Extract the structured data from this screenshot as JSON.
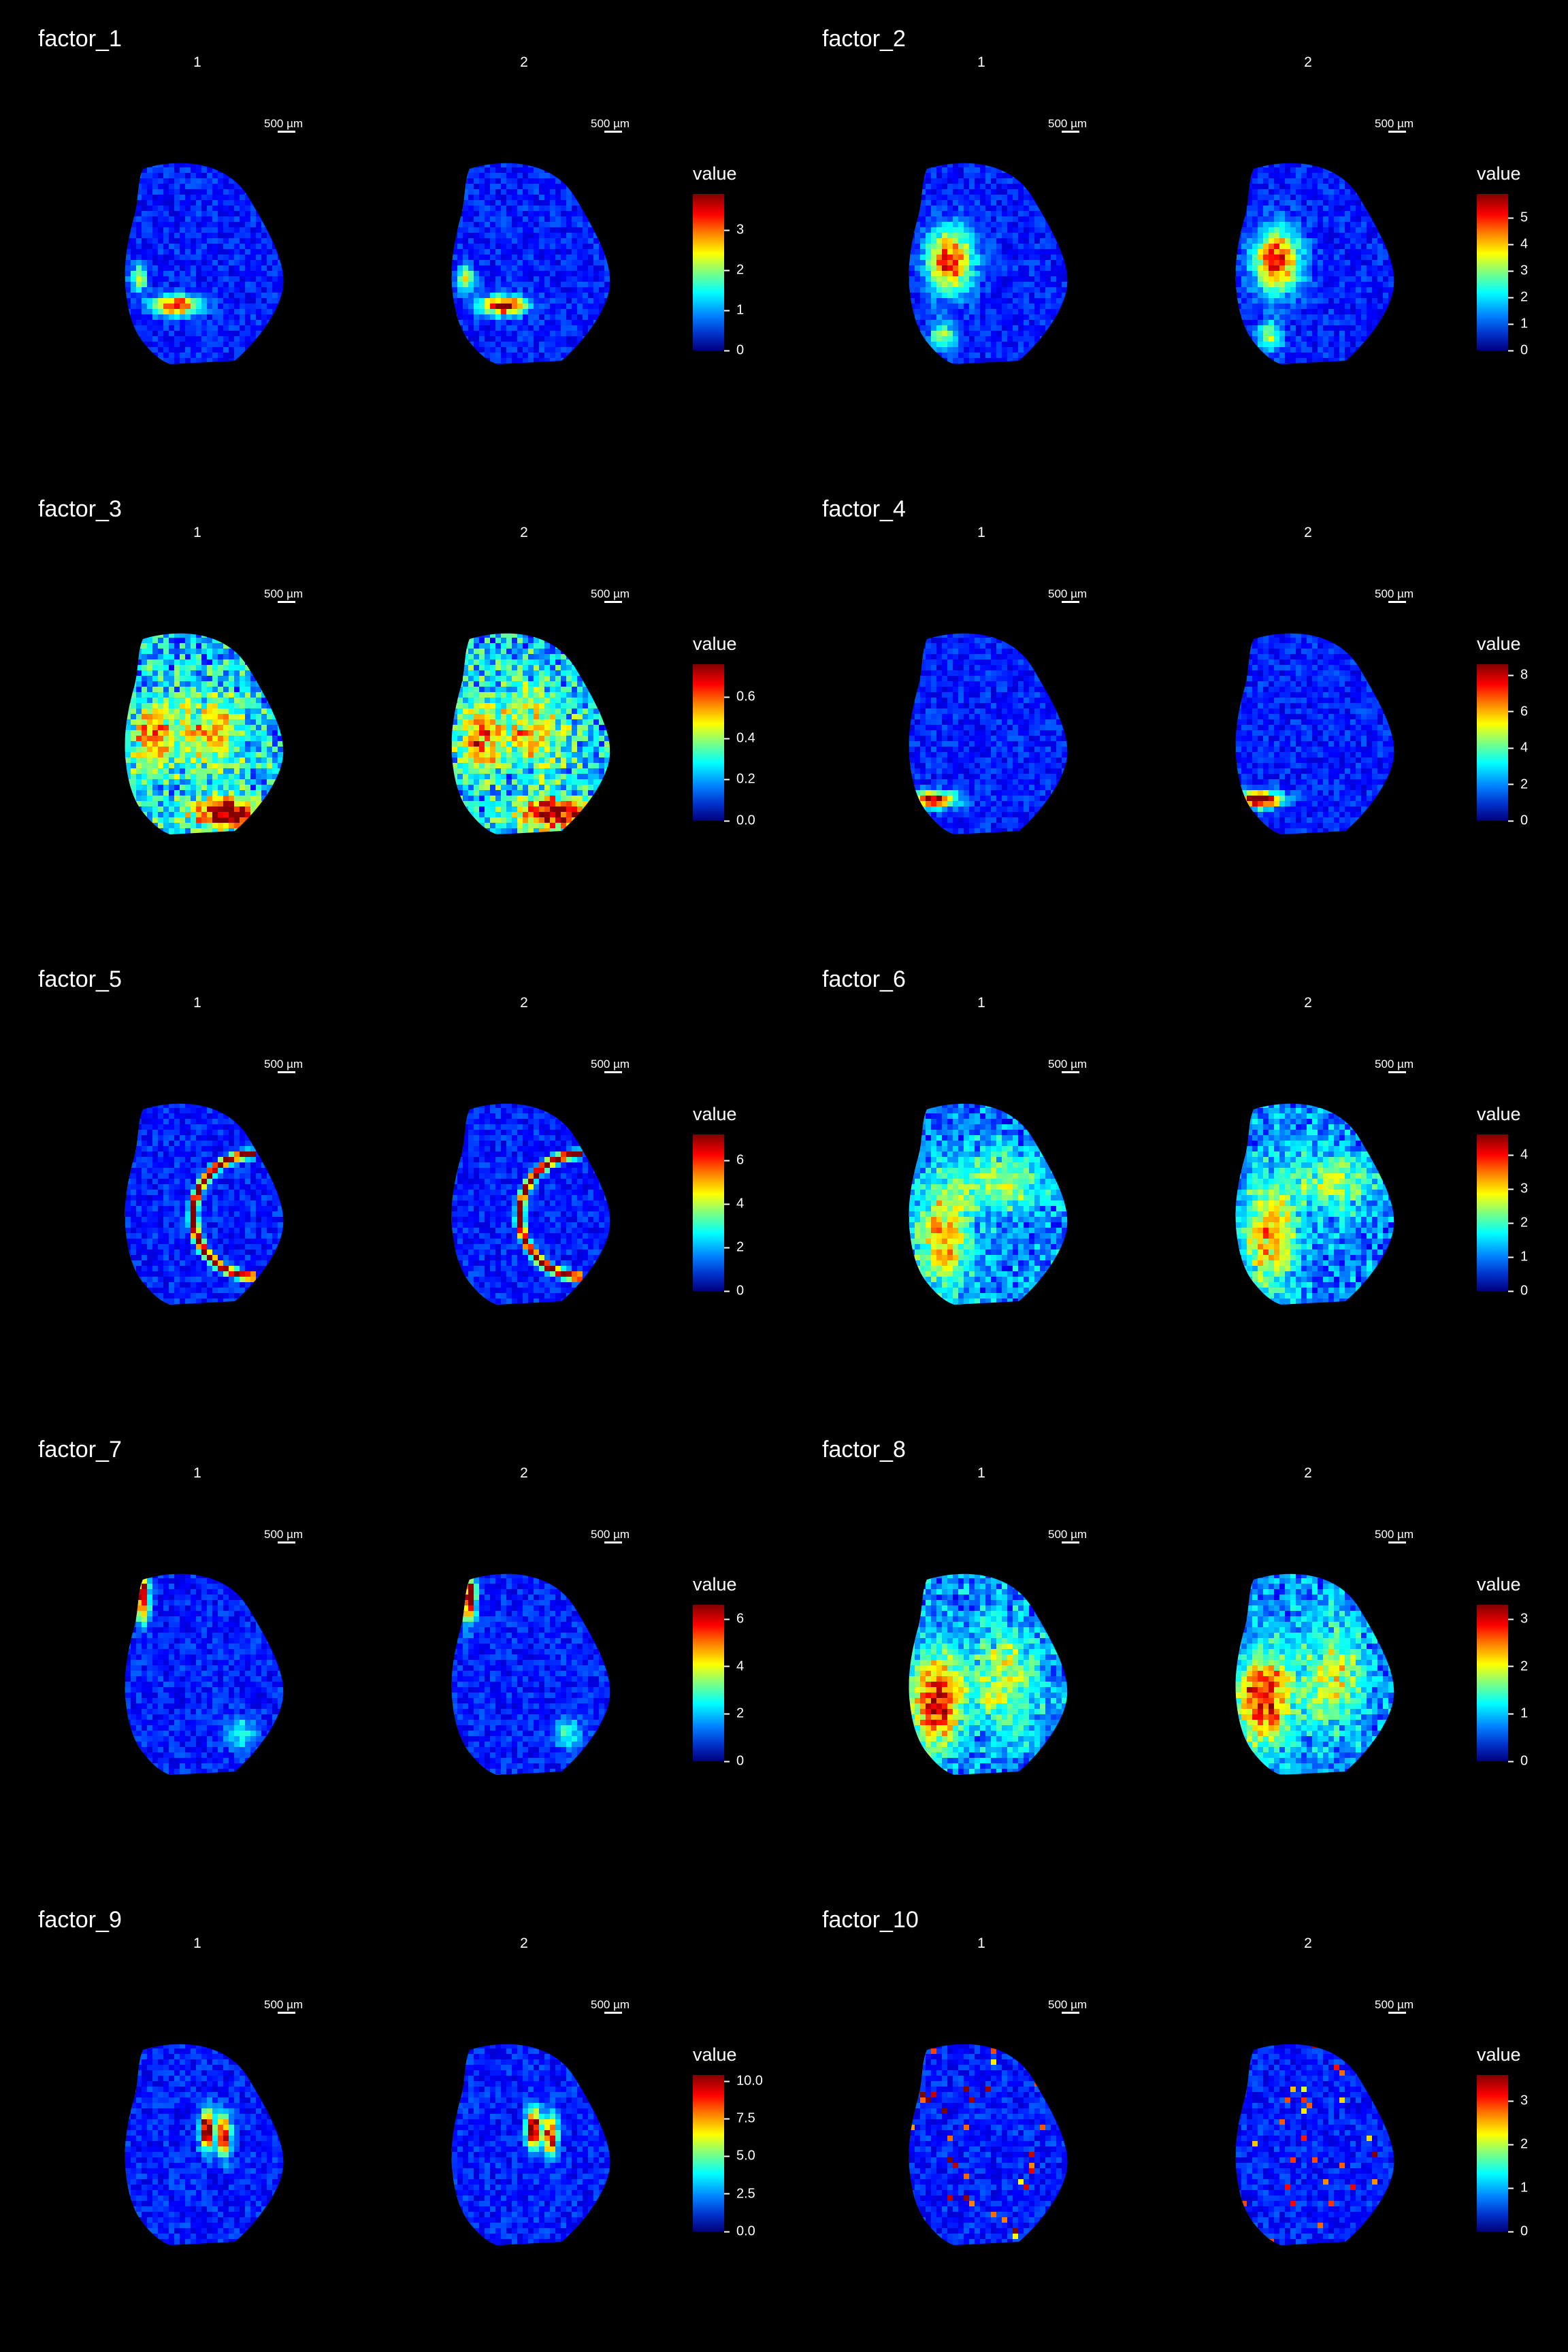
{
  "chart_data": [
    {
      "type": "heatmap",
      "title": "factor_1",
      "slides": [
        "1",
        "2"
      ],
      "scale_bar": "500 µm",
      "legend_title": "value",
      "colorscale": "jet",
      "vmax": 3.9,
      "ticks": [
        "0",
        "1",
        "2",
        "3"
      ]
    },
    {
      "type": "heatmap",
      "title": "factor_2",
      "slides": [
        "1",
        "2"
      ],
      "scale_bar": "500 µm",
      "legend_title": "value",
      "colorscale": "jet",
      "vmax": 5.9,
      "ticks": [
        "0",
        "1",
        "2",
        "3",
        "4",
        "5"
      ]
    },
    {
      "type": "heatmap",
      "title": "factor_3",
      "slides": [
        "1",
        "2"
      ],
      "scale_bar": "500 µm",
      "legend_title": "value",
      "colorscale": "jet",
      "vmax": 0.76,
      "ticks": [
        "0.0",
        "0.2",
        "0.4",
        "0.6"
      ]
    },
    {
      "type": "heatmap",
      "title": "factor_4",
      "slides": [
        "1",
        "2"
      ],
      "scale_bar": "500 µm",
      "legend_title": "value",
      "colorscale": "jet",
      "vmax": 8.6,
      "ticks": [
        "0",
        "2",
        "4",
        "6",
        "8"
      ]
    },
    {
      "type": "heatmap",
      "title": "factor_5",
      "slides": [
        "1",
        "2"
      ],
      "scale_bar": "500 µm",
      "legend_title": "value",
      "colorscale": "jet",
      "vmax": 7.2,
      "ticks": [
        "0",
        "2",
        "4",
        "6"
      ]
    },
    {
      "type": "heatmap",
      "title": "factor_6",
      "slides": [
        "1",
        "2"
      ],
      "scale_bar": "500 µm",
      "legend_title": "value",
      "colorscale": "jet",
      "vmax": 4.6,
      "ticks": [
        "0",
        "1",
        "2",
        "3",
        "4"
      ]
    },
    {
      "type": "heatmap",
      "title": "factor_7",
      "slides": [
        "1",
        "2"
      ],
      "scale_bar": "500 µm",
      "legend_title": "value",
      "colorscale": "jet",
      "vmax": 6.6,
      "ticks": [
        "0",
        "2",
        "4",
        "6"
      ]
    },
    {
      "type": "heatmap",
      "title": "factor_8",
      "slides": [
        "1",
        "2"
      ],
      "scale_bar": "500 µm",
      "legend_title": "value",
      "colorscale": "jet",
      "vmax": 3.3,
      "ticks": [
        "0",
        "1",
        "2",
        "3"
      ]
    },
    {
      "type": "heatmap",
      "title": "factor_9",
      "slides": [
        "1",
        "2"
      ],
      "scale_bar": "500 µm",
      "legend_title": "value",
      "colorscale": "jet",
      "vmax": 10.4,
      "ticks": [
        "0.0",
        "2.5",
        "5.0",
        "7.5",
        "10.0"
      ]
    },
    {
      "type": "heatmap",
      "title": "factor_10",
      "slides": [
        "1",
        "2"
      ],
      "scale_bar": "500 µm",
      "legend_title": "value",
      "colorscale": "jet",
      "vmax": 3.6,
      "ticks": [
        "0",
        "1",
        "2",
        "3"
      ]
    }
  ]
}
